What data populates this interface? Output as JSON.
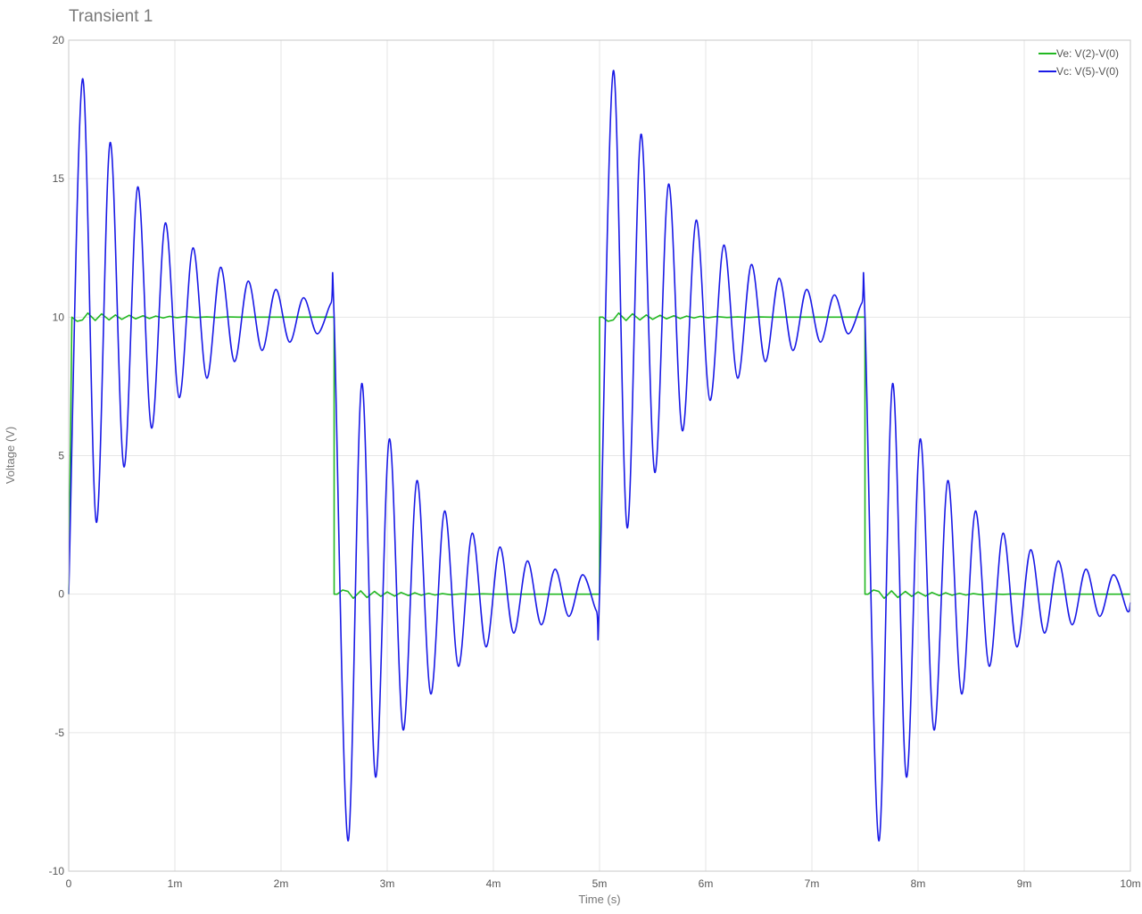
{
  "chart_data": {
    "type": "line",
    "title": "Transient 1",
    "xlabel": "Time (s)",
    "ylabel": "Voltage (V)",
    "xlim": [
      0,
      0.01
    ],
    "ylim": [
      -10,
      20
    ],
    "x_ticks": [
      {
        "value": 0,
        "label": "0"
      },
      {
        "value": 0.001,
        "label": "1m"
      },
      {
        "value": 0.002,
        "label": "2m"
      },
      {
        "value": 0.003,
        "label": "3m"
      },
      {
        "value": 0.004,
        "label": "4m"
      },
      {
        "value": 0.005,
        "label": "5m"
      },
      {
        "value": 0.006,
        "label": "6m"
      },
      {
        "value": 0.007,
        "label": "7m"
      },
      {
        "value": 0.008,
        "label": "8m"
      },
      {
        "value": 0.009,
        "label": "9m"
      },
      {
        "value": 0.01,
        "label": "10m"
      }
    ],
    "y_ticks": [
      {
        "value": 20,
        "label": "20"
      },
      {
        "value": 15,
        "label": "15"
      },
      {
        "value": 10,
        "label": "10"
      },
      {
        "value": 5,
        "label": "5"
      },
      {
        "value": 0,
        "label": "0"
      },
      {
        "value": -5,
        "label": "-5"
      },
      {
        "value": -10,
        "label": "-10"
      }
    ],
    "grid": true,
    "legend_position": "top-right",
    "series": [
      {
        "name": "Ve: V(2)-V(0)",
        "color": "#22b822",
        "x": [
          0,
          3e-05,
          8e-05,
          0.00013,
          0.00018,
          0.00025,
          0.00031,
          0.00038,
          0.00044,
          0.0005,
          0.00057,
          0.00063,
          0.0007,
          0.00076,
          0.00082,
          0.00089,
          0.00095,
          0.00102,
          0.0011,
          0.0012,
          0.0013,
          0.0014,
          0.0015,
          0.0016,
          0.0017,
          0.0018,
          0.0019,
          0.002,
          0.0021,
          0.0022,
          0.0023,
          0.0024,
          0.0025,
          0.0025,
          0.00253,
          0.00258,
          0.00263,
          0.00268,
          0.00275,
          0.00281,
          0.00288,
          0.00294,
          0.003,
          0.00307,
          0.00313,
          0.0032,
          0.00326,
          0.00332,
          0.00339,
          0.00345,
          0.00352,
          0.0036,
          0.0037,
          0.0038,
          0.0039,
          0.004,
          0.0041,
          0.0042,
          0.0043,
          0.0044,
          0.0045,
          0.0046,
          0.0047,
          0.0048,
          0.0049,
          0.005,
          0.005,
          0.00503,
          0.00508,
          0.00513,
          0.00518,
          0.00525,
          0.00531,
          0.00538,
          0.00544,
          0.0055,
          0.00557,
          0.00563,
          0.0057,
          0.00576,
          0.00582,
          0.00589,
          0.00595,
          0.00602,
          0.0061,
          0.0062,
          0.0063,
          0.0064,
          0.0065,
          0.0066,
          0.0067,
          0.0068,
          0.0069,
          0.007,
          0.0071,
          0.0072,
          0.0073,
          0.0074,
          0.0075,
          0.0075,
          0.00753,
          0.00758,
          0.00763,
          0.00768,
          0.00775,
          0.00781,
          0.00788,
          0.00794,
          0.008,
          0.00807,
          0.00813,
          0.0082,
          0.00826,
          0.00832,
          0.00839,
          0.00845,
          0.00852,
          0.0086,
          0.0087,
          0.0088,
          0.0089,
          0.009,
          0.0091,
          0.0092,
          0.0093,
          0.0094,
          0.0095,
          0.0096,
          0.0097,
          0.0098,
          0.0099,
          0.01
        ],
        "y": [
          0,
          10.0,
          9.85,
          9.9,
          10.15,
          9.88,
          10.12,
          9.9,
          10.08,
          9.92,
          10.07,
          9.94,
          10.05,
          9.95,
          10.04,
          9.97,
          10.03,
          9.98,
          10.02,
          9.99,
          10.01,
          9.99,
          10.01,
          10.0,
          10.0,
          10.0,
          10.0,
          10.0,
          10.0,
          10.0,
          10.0,
          10.0,
          10.0,
          0,
          0.0,
          0.15,
          0.1,
          -0.15,
          0.12,
          -0.12,
          0.1,
          -0.08,
          0.08,
          -0.07,
          0.06,
          -0.05,
          0.05,
          -0.04,
          0.03,
          -0.03,
          0.02,
          -0.02,
          0.01,
          -0.01,
          0.01,
          0.0,
          0.0,
          0.0,
          0.0,
          0.0,
          0.0,
          0.0,
          0.0,
          0.0,
          0.0,
          0.0,
          10.0,
          10.0,
          9.85,
          9.9,
          10.15,
          9.88,
          10.12,
          9.9,
          10.08,
          9.92,
          10.07,
          9.94,
          10.05,
          9.95,
          10.04,
          9.97,
          10.03,
          9.98,
          10.02,
          9.99,
          10.01,
          9.99,
          10.01,
          10.0,
          10.0,
          10.0,
          10.0,
          10.0,
          10.0,
          10.0,
          10.0,
          10.0,
          10.0,
          0,
          0.0,
          0.15,
          0.1,
          -0.15,
          0.12,
          -0.12,
          0.1,
          -0.08,
          0.08,
          -0.07,
          0.06,
          -0.05,
          0.05,
          -0.04,
          0.03,
          -0.03,
          0.02,
          -0.02,
          0.01,
          -0.01,
          0.01,
          0.0,
          0.0,
          0.0,
          0.0,
          0.0,
          0.0,
          0.0,
          0.0,
          0.0,
          0.0,
          0.0
        ]
      },
      {
        "name": "Vc: V(5)-V(0)",
        "color": "#1a1ae6",
        "x": [
          0,
          0.00013,
          0.00026,
          0.00039,
          0.00052,
          0.00065,
          0.00078,
          0.00091,
          0.00104,
          0.00117,
          0.0013,
          0.00143,
          0.00156,
          0.00169,
          0.00182,
          0.00195,
          0.00208,
          0.00221,
          0.00234,
          0.00247,
          0.0025,
          0.00263,
          0.00276,
          0.00289,
          0.00302,
          0.00315,
          0.00328,
          0.00341,
          0.00354,
          0.00367,
          0.0038,
          0.00393,
          0.00406,
          0.00419,
          0.00432,
          0.00445,
          0.00458,
          0.00471,
          0.00484,
          0.00497,
          0.005,
          0.00513,
          0.00526,
          0.00539,
          0.00552,
          0.00565,
          0.00578,
          0.00591,
          0.00604,
          0.00617,
          0.0063,
          0.00643,
          0.00656,
          0.00669,
          0.00682,
          0.00695,
          0.00708,
          0.00721,
          0.00734,
          0.00747,
          0.0075,
          0.00763,
          0.00776,
          0.00789,
          0.00802,
          0.00815,
          0.00828,
          0.00841,
          0.00854,
          0.00867,
          0.0088,
          0.00893,
          0.00906,
          0.00919,
          0.00932,
          0.00945,
          0.00958,
          0.00971,
          0.00984,
          0.00997,
          0.01
        ],
        "y": [
          0.0,
          18.6,
          2.6,
          16.3,
          4.6,
          14.7,
          6.0,
          13.4,
          7.1,
          12.5,
          7.8,
          11.8,
          8.4,
          11.3,
          8.8,
          11.0,
          9.1,
          10.7,
          9.4,
          10.5,
          10.0,
          -8.9,
          7.6,
          -6.6,
          5.6,
          -4.9,
          4.1,
          -3.6,
          3.0,
          -2.6,
          2.2,
          -1.9,
          1.7,
          -1.4,
          1.2,
          -1.1,
          0.9,
          -0.8,
          0.7,
          -0.6,
          0.0,
          18.9,
          2.4,
          16.6,
          4.4,
          14.8,
          5.9,
          13.5,
          7.0,
          12.6,
          7.8,
          11.9,
          8.4,
          11.4,
          8.8,
          11.0,
          9.1,
          10.8,
          9.4,
          10.5,
          10.0,
          -8.9,
          7.6,
          -6.6,
          5.6,
          -4.9,
          4.1,
          -3.6,
          3.0,
          -2.6,
          2.2,
          -1.9,
          1.6,
          -1.4,
          1.2,
          -1.1,
          0.9,
          -0.8,
          0.7,
          -0.6,
          -0.3
        ]
      }
    ]
  }
}
